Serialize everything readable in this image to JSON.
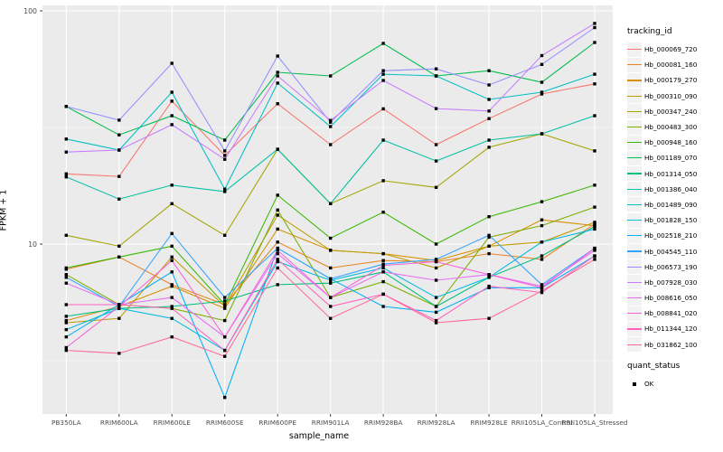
{
  "figure": {
    "ylabel": "FPKM + 1",
    "xlabel": "sample_name",
    "y_tick_labels": [
      "100",
      "10"
    ],
    "legend": {
      "tracking_title": "tracking_id",
      "quant_title": "quant_status",
      "quant_items": [
        {
          "label": "OK"
        }
      ]
    }
  },
  "chart_data": {
    "type": "line",
    "title": "",
    "xlabel": "sample_name",
    "ylabel": "FPKM + 1",
    "yscale": "log10",
    "ylim": [
      1.85,
      105
    ],
    "y_major_ticks": [
      10,
      100
    ],
    "y_minor_ticks": [
      3.162,
      31.62
    ],
    "grid": "white on gray panel, major+minor horizontal, major vertical",
    "legend_position": "right",
    "marker": "black-square (quant_status OK)",
    "panel_bg": "#EBEBEB",
    "axis_text_color": "#4D4D4D",
    "categories": [
      "PB350LA",
      "RRIM600LA",
      "RRIM600LE",
      "RRIM600SE",
      "RRIM600PE",
      "RRIM901LA",
      "RRIM928BA",
      "RRIM928LA",
      "RRIM928LE",
      "RRII105LA_Control",
      "RRII105LA_Stressed"
    ],
    "series": [
      {
        "name": "Hb_000069_720",
        "color": "#F8766D",
        "values": [
          20.0,
          19.5,
          41.0,
          24.0,
          40.0,
          26.7,
          38.0,
          26.7,
          34.5,
          44.0,
          48.6
        ]
      },
      {
        "name": "Hb_000081_160",
        "color": "#E88526",
        "values": [
          7.8,
          8.8,
          6.7,
          5.5,
          10.2,
          7.9,
          8.5,
          8.4,
          9.1,
          8.6,
          12.2
        ]
      },
      {
        "name": "Hb_000179_270",
        "color": "#D89000",
        "values": [
          4.7,
          5.4,
          6.6,
          5.3,
          11.6,
          9.4,
          9.1,
          8.5,
          9.8,
          12.7,
          12.0
        ]
      },
      {
        "name": "Hb_000310_090",
        "color": "#C09B00",
        "values": [
          4.6,
          4.8,
          8.8,
          5.4,
          13.3,
          9.4,
          9.1,
          7.9,
          9.8,
          10.2,
          12.4
        ]
      },
      {
        "name": "Hb_000347_240",
        "color": "#A3A500",
        "values": [
          10.9,
          9.8,
          14.9,
          10.9,
          25.5,
          14.9,
          18.7,
          17.5,
          26.0,
          29.7,
          25.1
        ]
      },
      {
        "name": "Hb_000483_300",
        "color": "#7CAE00",
        "values": [
          7.4,
          5.5,
          5.3,
          4.7,
          14.0,
          5.9,
          6.9,
          5.4,
          10.7,
          12.0,
          14.4
        ]
      },
      {
        "name": "Hb_000948_160",
        "color": "#39B600",
        "values": [
          7.9,
          8.8,
          9.8,
          5.5,
          16.2,
          10.6,
          13.7,
          10.0,
          13.1,
          15.2,
          17.9
        ]
      },
      {
        "name": "Hb_001189_070",
        "color": "#00BB4E",
        "values": [
          38.9,
          29.4,
          35.5,
          27.9,
          54.5,
          52.6,
          72.5,
          52.6,
          55.4,
          49.4,
          73.2
        ]
      },
      {
        "name": "Hb_001314_050",
        "color": "#00BF7D",
        "values": [
          4.9,
          5.3,
          5.4,
          5.7,
          6.7,
          6.8,
          7.6,
          5.4,
          7.2,
          8.9,
          11.9
        ]
      },
      {
        "name": "Hb_001386_040",
        "color": "#00C1A3",
        "values": [
          19.4,
          15.6,
          17.9,
          16.8,
          25.5,
          14.9,
          27.9,
          22.7,
          27.9,
          29.7,
          35.5
        ]
      },
      {
        "name": "Hb_001489_090",
        "color": "#00BFC4",
        "values": [
          28.2,
          25.3,
          44.8,
          17.2,
          49.0,
          31.9,
          53.5,
          52.6,
          41.7,
          44.8,
          53.5
        ]
      },
      {
        "name": "Hb_001828_150",
        "color": "#00BAE0",
        "values": [
          4.3,
          5.3,
          4.8,
          3.5,
          8.4,
          7.0,
          7.9,
          5.9,
          7.2,
          10.2,
          11.6
        ]
      },
      {
        "name": "Hb_002518_210",
        "color": "#00B0F6",
        "values": [
          4.0,
          5.5,
          7.6,
          2.2,
          9.6,
          7.1,
          5.4,
          5.1,
          6.5,
          6.5,
          8.9
        ]
      },
      {
        "name": "Hb_004545_110",
        "color": "#35A2FF",
        "values": [
          7.2,
          5.4,
          11.1,
          5.9,
          9.6,
          7.1,
          8.2,
          8.6,
          10.9,
          6.7,
          9.6
        ]
      },
      {
        "name": "Hb_006573_190",
        "color": "#9590FF",
        "values": [
          38.9,
          34.0,
          59.6,
          25.1,
          64.0,
          33.3,
          55.4,
          56.4,
          48.1,
          58.9,
          84.8
        ]
      },
      {
        "name": "Hb_007928_030",
        "color": "#C77CFF",
        "values": [
          24.8,
          25.3,
          32.5,
          23.1,
          52.6,
          33.9,
          50.3,
          38.1,
          37.2,
          64.3,
          88.3
        ]
      },
      {
        "name": "Hb_008616_050",
        "color": "#E76BF3",
        "values": [
          6.8,
          5.5,
          5.9,
          4.0,
          9.1,
          5.9,
          7.6,
          7.0,
          7.4,
          6.6,
          9.4
        ]
      },
      {
        "name": "Hb_008841_020",
        "color": "#FA62DB",
        "values": [
          3.6,
          5.4,
          8.5,
          4.0,
          9.4,
          5.9,
          8.1,
          8.4,
          7.4,
          6.5,
          9.6
        ]
      },
      {
        "name": "Hb_011344_120",
        "color": "#FF62BC",
        "values": [
          5.5,
          5.5,
          5.3,
          3.5,
          8.6,
          5.4,
          6.1,
          4.7,
          6.6,
          6.2,
          8.9
        ]
      },
      {
        "name": "Hb_031862_100",
        "color": "#FF6A98",
        "values": [
          3.5,
          3.4,
          4.0,
          3.3,
          7.9,
          4.8,
          6.1,
          4.6,
          4.8,
          6.3,
          8.6
        ]
      }
    ]
  }
}
